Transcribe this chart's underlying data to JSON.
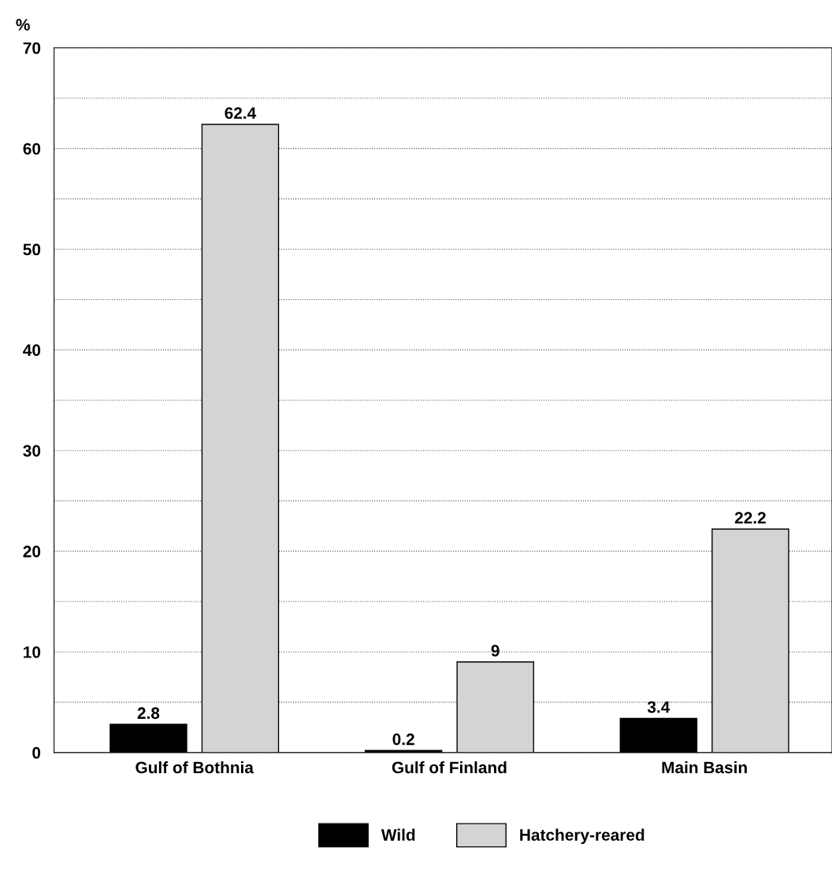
{
  "chart_data": {
    "type": "bar",
    "ylabel": "%",
    "categories": [
      "Gulf of Bothnia",
      "Gulf of Finland",
      "Main Basin"
    ],
    "series": [
      {
        "name": "Wild",
        "color": "#000000",
        "values": [
          2.8,
          0.2,
          3.4
        ]
      },
      {
        "name": "Hatchery-reared",
        "color": "#d4d4d4",
        "values": [
          62.4,
          9,
          22.2
        ]
      }
    ],
    "ylim": [
      0,
      70
    ],
    "yticks": [
      0,
      {
        "value": 5,
        "label": null
      },
      10,
      {
        "value": 15,
        "label": null
      },
      20,
      {
        "value": 25,
        "label": null
      },
      30,
      {
        "value": 35,
        "label": null
      },
      40,
      {
        "value": 45,
        "label": null
      },
      50,
      {
        "value": 55,
        "label": null
      },
      60,
      {
        "value": 65,
        "label": null
      },
      70
    ],
    "grid": "y",
    "legend": "bottom",
    "data_labels": true
  }
}
